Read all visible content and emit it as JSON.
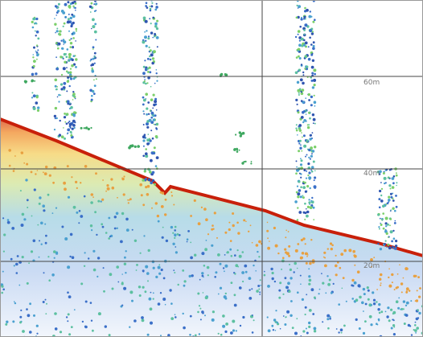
{
  "depth_labels": [
    "60m",
    "40m",
    "20m"
  ]
}
